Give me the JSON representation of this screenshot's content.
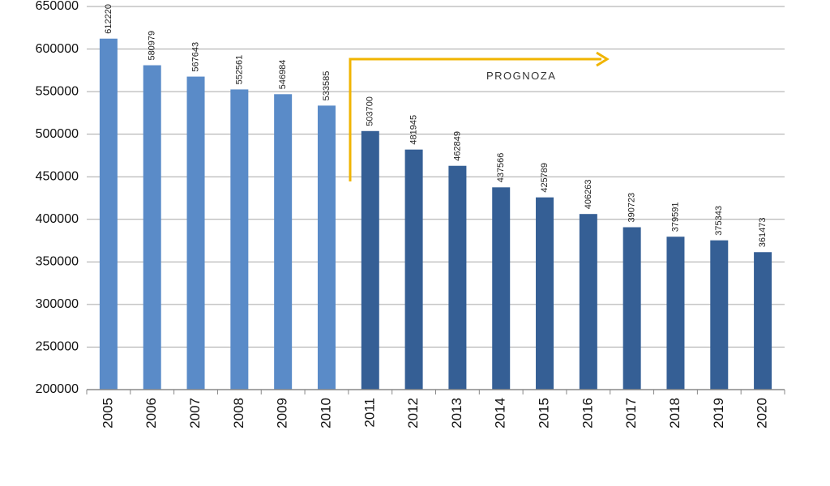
{
  "chart_data": {
    "type": "bar",
    "categories": [
      "2005",
      "2006",
      "2007",
      "2008",
      "2009",
      "2010",
      "2011",
      "2012",
      "2013",
      "2014",
      "2015",
      "2016",
      "2017",
      "2018",
      "2019",
      "2020"
    ],
    "values": [
      612220,
      580979,
      567643,
      552561,
      546984,
      533585,
      503700,
      481945,
      462849,
      437566,
      425789,
      406263,
      390723,
      379591,
      375343,
      361473
    ],
    "colors": [
      "#5a8bc8",
      "#5a8bc8",
      "#5a8bc8",
      "#5a8bc8",
      "#5a8bc8",
      "#5a8bc8",
      "#355f95",
      "#355f95",
      "#355f95",
      "#355f95",
      "#355f95",
      "#355f95",
      "#355f95",
      "#355f95",
      "#355f95",
      "#355f95"
    ],
    "ylim": [
      200000,
      650000
    ],
    "yticks": [
      200000,
      250000,
      300000,
      350000,
      400000,
      450000,
      500000,
      550000,
      600000,
      650000
    ],
    "grid": true,
    "annotation": {
      "text": "PROGNOZA",
      "color": "#f0b400"
    }
  }
}
